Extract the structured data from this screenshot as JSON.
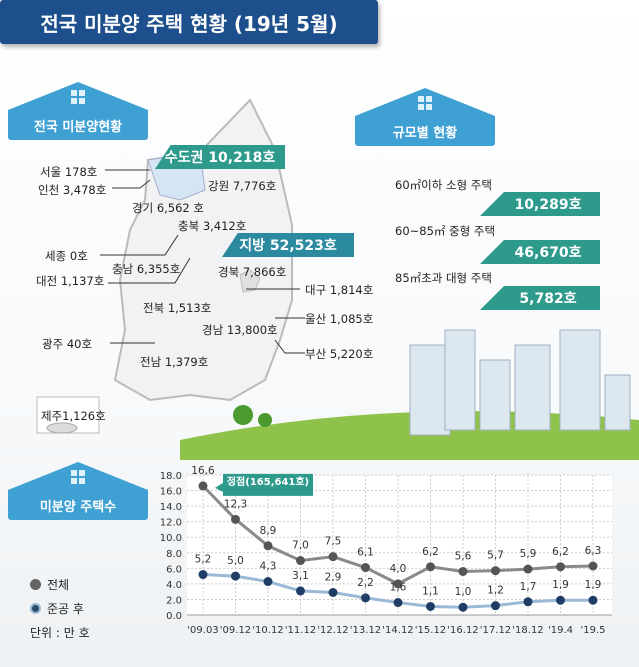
{
  "title": "전국 미분양 주택 현황 (19년 5월)",
  "sections": {
    "national": "전국 미분양현황",
    "by_size": "규모별 현황",
    "count": "미분양 주택수"
  },
  "regions": {
    "capital": "수도권 10,218호",
    "local": "지방 52,523호",
    "items": [
      "서울  178호",
      "인천 3,478호",
      "경기 6,562 호",
      "강원 7,776호",
      "충북 3,412호",
      "세종 0호",
      "충남 6,355호",
      "대전 1,137호",
      "경북 7,866호",
      "대구 1,814호",
      "전북 1,513호",
      "울산 1,085호",
      "경남 13,800호",
      "광주 40호",
      "부산 5,220호",
      "전남 1,379호",
      "제주1,126호"
    ]
  },
  "size_status": [
    {
      "label": "60㎡이하 소형 주택",
      "value": "10,289호"
    },
    {
      "label": "60~85㎡ 중형 주택",
      "value": "46,670호"
    },
    {
      "label": "85㎡초과 대형 주택",
      "value": "5,782호"
    }
  ],
  "colors": {
    "title": "#1d4f8c",
    "house": "#3fa0d4",
    "teal": "#2d9a8c",
    "total": "#666666",
    "completed": "#2a4a6e"
  },
  "chart_data": {
    "type": "line",
    "categories": [
      "'09.03",
      "'09.12",
      "'10.12",
      "'11.12",
      "'12.12",
      "'13.12",
      "'14.12",
      "'15.12",
      "'16.12",
      "'17.12",
      "'18.12",
      "'19.4",
      "'19.5"
    ],
    "series": [
      {
        "name": "전체",
        "values": [
          16.6,
          12.3,
          8.9,
          7.0,
          7.5,
          6.1,
          4.0,
          6.2,
          5.6,
          5.7,
          5.9,
          6.2,
          6.3
        ],
        "labels": [
          "16,6",
          "12,3",
          "8,9",
          "7,0",
          "7,5",
          "6,1",
          "4,0",
          "6,2",
          "5,6",
          "5,7",
          "5,9",
          "6,2",
          "6,3"
        ]
      },
      {
        "name": "준공 후",
        "values": [
          5.2,
          5.0,
          4.3,
          3.1,
          2.9,
          2.2,
          1.6,
          1.1,
          1.0,
          1.2,
          1.7,
          1.9,
          1.9
        ],
        "labels": [
          "5,2",
          "5,0",
          "4,3",
          "3,1",
          "2,9",
          "2,2",
          "1,6",
          "1,1",
          "1,0",
          "1,2",
          "1,7",
          "1,9",
          "1,9"
        ]
      }
    ],
    "yticks": [
      "18.0",
      "16.0",
      "14.0",
      "12.0",
      "10.0",
      "8.0",
      "6.0",
      "4.0",
      "2.0",
      "0.0"
    ],
    "ylim": [
      0,
      18
    ],
    "grid": true,
    "annotation": "정점(165,641호)",
    "unit_label": "단위 : 만 호",
    "legend_position": "left"
  }
}
